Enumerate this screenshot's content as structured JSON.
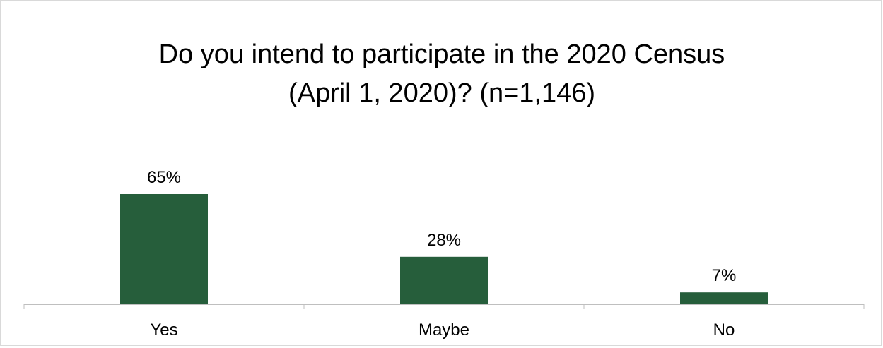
{
  "chart_data": {
    "type": "bar",
    "title_lines": [
      "Do you intend to participate in the 2020 Census",
      "(April 1, 2020)?  (n=1,146)"
    ],
    "categories": [
      "Yes",
      "Maybe",
      "No"
    ],
    "values": [
      65,
      28,
      7
    ],
    "data_labels": [
      "65%",
      "28%",
      "7%"
    ],
    "bar_color": "#265E3B",
    "axis_color": "#BFBFBF",
    "ylim": [
      0,
      100
    ],
    "grid": false,
    "legend": "none"
  }
}
